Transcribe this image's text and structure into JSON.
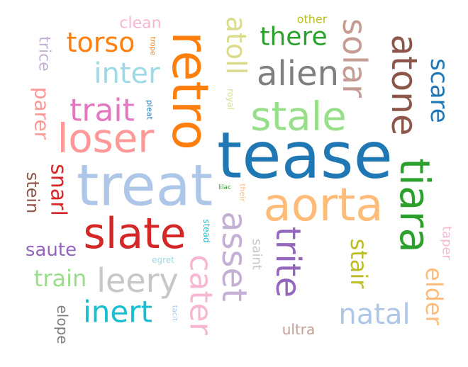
{
  "words": [
    {
      "text": "tease",
      "color": "#1f77b4",
      "rotate": 0
    },
    {
      "text": "treat",
      "color": "#aec7e8",
      "rotate": 0
    },
    {
      "text": "aorta",
      "color": "#ffbb78",
      "rotate": 0
    },
    {
      "text": "retro",
      "color": "#ff7f0e",
      "rotate": 90
    },
    {
      "text": "slate",
      "color": "#d62728",
      "rotate": 0
    },
    {
      "text": "tiara",
      "color": "#2ca02c",
      "rotate": 90
    },
    {
      "text": "stale",
      "color": "#98df8a",
      "rotate": 0
    },
    {
      "text": "loser",
      "color": "#ff9896",
      "rotate": 0
    },
    {
      "text": "atone",
      "color": "#8c564b",
      "rotate": 90
    },
    {
      "text": "asset",
      "color": "#c5b0d5",
      "rotate": 90
    },
    {
      "text": "trite",
      "color": "#9467bd",
      "rotate": 90
    },
    {
      "text": "alien",
      "color": "#7f7f7f",
      "rotate": 0
    },
    {
      "text": "solar",
      "color": "#c49c94",
      "rotate": 90
    },
    {
      "text": "leery",
      "color": "#c7c7c7",
      "rotate": 0
    },
    {
      "text": "cater",
      "color": "#f7b6d2",
      "rotate": 90
    },
    {
      "text": "natal",
      "color": "#aec7e8",
      "rotate": 0
    },
    {
      "text": "inert",
      "color": "#17becf",
      "rotate": 0
    },
    {
      "text": "trait",
      "color": "#e377c2",
      "rotate": 0
    },
    {
      "text": "inter",
      "color": "#9edae5",
      "rotate": 0
    },
    {
      "text": "torso",
      "color": "#ff7f0e",
      "rotate": 0
    },
    {
      "text": "there",
      "color": "#2ca02c",
      "rotate": 0
    },
    {
      "text": "atoll",
      "color": "#dbdb8d",
      "rotate": 90
    },
    {
      "text": "scare",
      "color": "#1f77b4",
      "rotate": 90
    },
    {
      "text": "stair",
      "color": "#bcbd22",
      "rotate": 90
    },
    {
      "text": "elder",
      "color": "#ffbb78",
      "rotate": 90
    },
    {
      "text": "train",
      "color": "#98df8a",
      "rotate": 0
    },
    {
      "text": "snarl",
      "color": "#d62728",
      "rotate": 90
    },
    {
      "text": "parer",
      "color": "#ff9896",
      "rotate": 90
    },
    {
      "text": "saute",
      "color": "#9467bd",
      "rotate": 0
    },
    {
      "text": "stein",
      "color": "#8c564b",
      "rotate": 90
    },
    {
      "text": "trice",
      "color": "#c5b0d5",
      "rotate": 90
    },
    {
      "text": "elope",
      "color": "#7f7f7f",
      "rotate": 90
    },
    {
      "text": "clean",
      "color": "#f7b6d2",
      "rotate": 0
    },
    {
      "text": "ultra",
      "color": "#c49c94",
      "rotate": 0
    },
    {
      "text": "saint",
      "color": "#c7c7c7",
      "rotate": 90
    },
    {
      "text": "taper",
      "color": "#f7b6d2",
      "rotate": 90
    },
    {
      "text": "other",
      "color": "#bcbd22",
      "rotate": 0
    },
    {
      "text": "royal",
      "color": "#dbdb8d",
      "rotate": 90
    },
    {
      "text": "stead",
      "color": "#17becf",
      "rotate": 90
    },
    {
      "text": "egret",
      "color": "#9edae5",
      "rotate": 0
    },
    {
      "text": "their",
      "color": "#ffbb78",
      "rotate": 90
    },
    {
      "text": "trope",
      "color": "#ff7f0e",
      "rotate": 90
    },
    {
      "text": "pleat",
      "color": "#1f77b4",
      "rotate": 90
    },
    {
      "text": "lilac",
      "color": "#2ca02c",
      "rotate": 0
    },
    {
      "text": "tacit",
      "color": "#aec7e8",
      "rotate": 90
    }
  ]
}
